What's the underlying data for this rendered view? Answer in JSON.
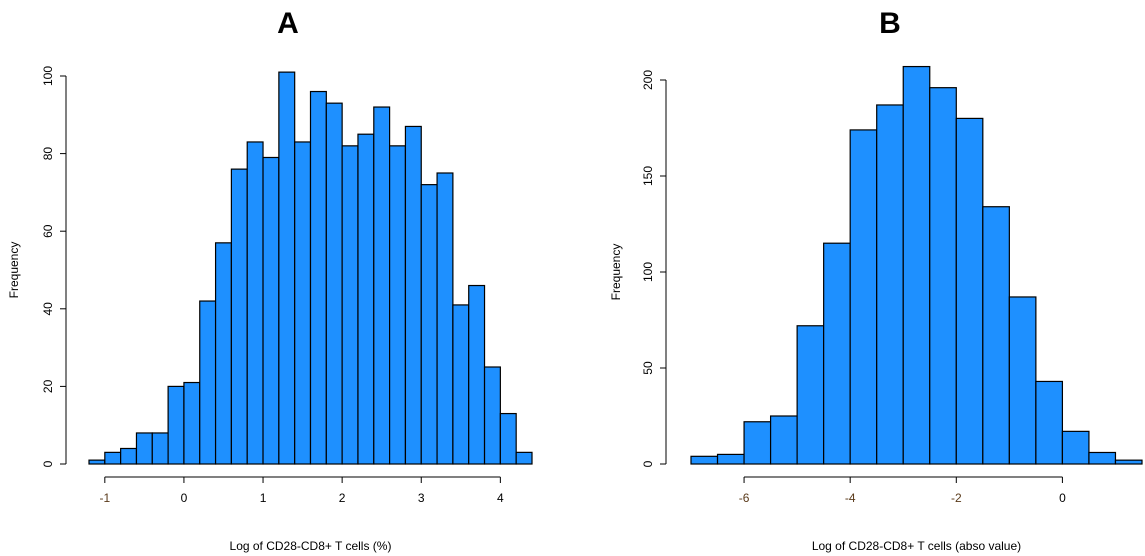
{
  "chart_data": [
    {
      "type": "bar",
      "panel_label": "A",
      "xlabel": "Log of CD28-CD8+ T cells (%)",
      "ylabel": "Frequency",
      "bar_color": "#1E90FF",
      "bin_width": 0.2,
      "bin_start": -1.2,
      "values": [
        1,
        3,
        4,
        8,
        8,
        20,
        21,
        42,
        57,
        76,
        83,
        79,
        101,
        83,
        96,
        93,
        82,
        85,
        92,
        82,
        87,
        72,
        75,
        41,
        46,
        25,
        13,
        3
      ],
      "xlim": [
        -1.2,
        4.4
      ],
      "ylim": [
        0,
        100
      ],
      "xticks": [
        -1,
        0,
        1,
        2,
        3,
        4
      ],
      "yticks": [
        0,
        20,
        40,
        60,
        80,
        100
      ]
    },
    {
      "type": "bar",
      "panel_label": "B",
      "xlabel": "Log of CD28-CD8+ T cells (abso value)",
      "ylabel": "Frequency",
      "bar_color": "#1E90FF",
      "bin_width": 0.5,
      "bin_start": -7.0,
      "values": [
        4,
        5,
        22,
        25,
        72,
        115,
        174,
        187,
        207,
        196,
        180,
        134,
        87,
        43,
        17,
        6,
        2
      ],
      "xlim": [
        -7,
        1.5
      ],
      "ylim": [
        0,
        200
      ],
      "xticks": [
        -6,
        -4,
        -2,
        0
      ],
      "yticks": [
        0,
        50,
        100,
        150,
        200
      ]
    }
  ]
}
